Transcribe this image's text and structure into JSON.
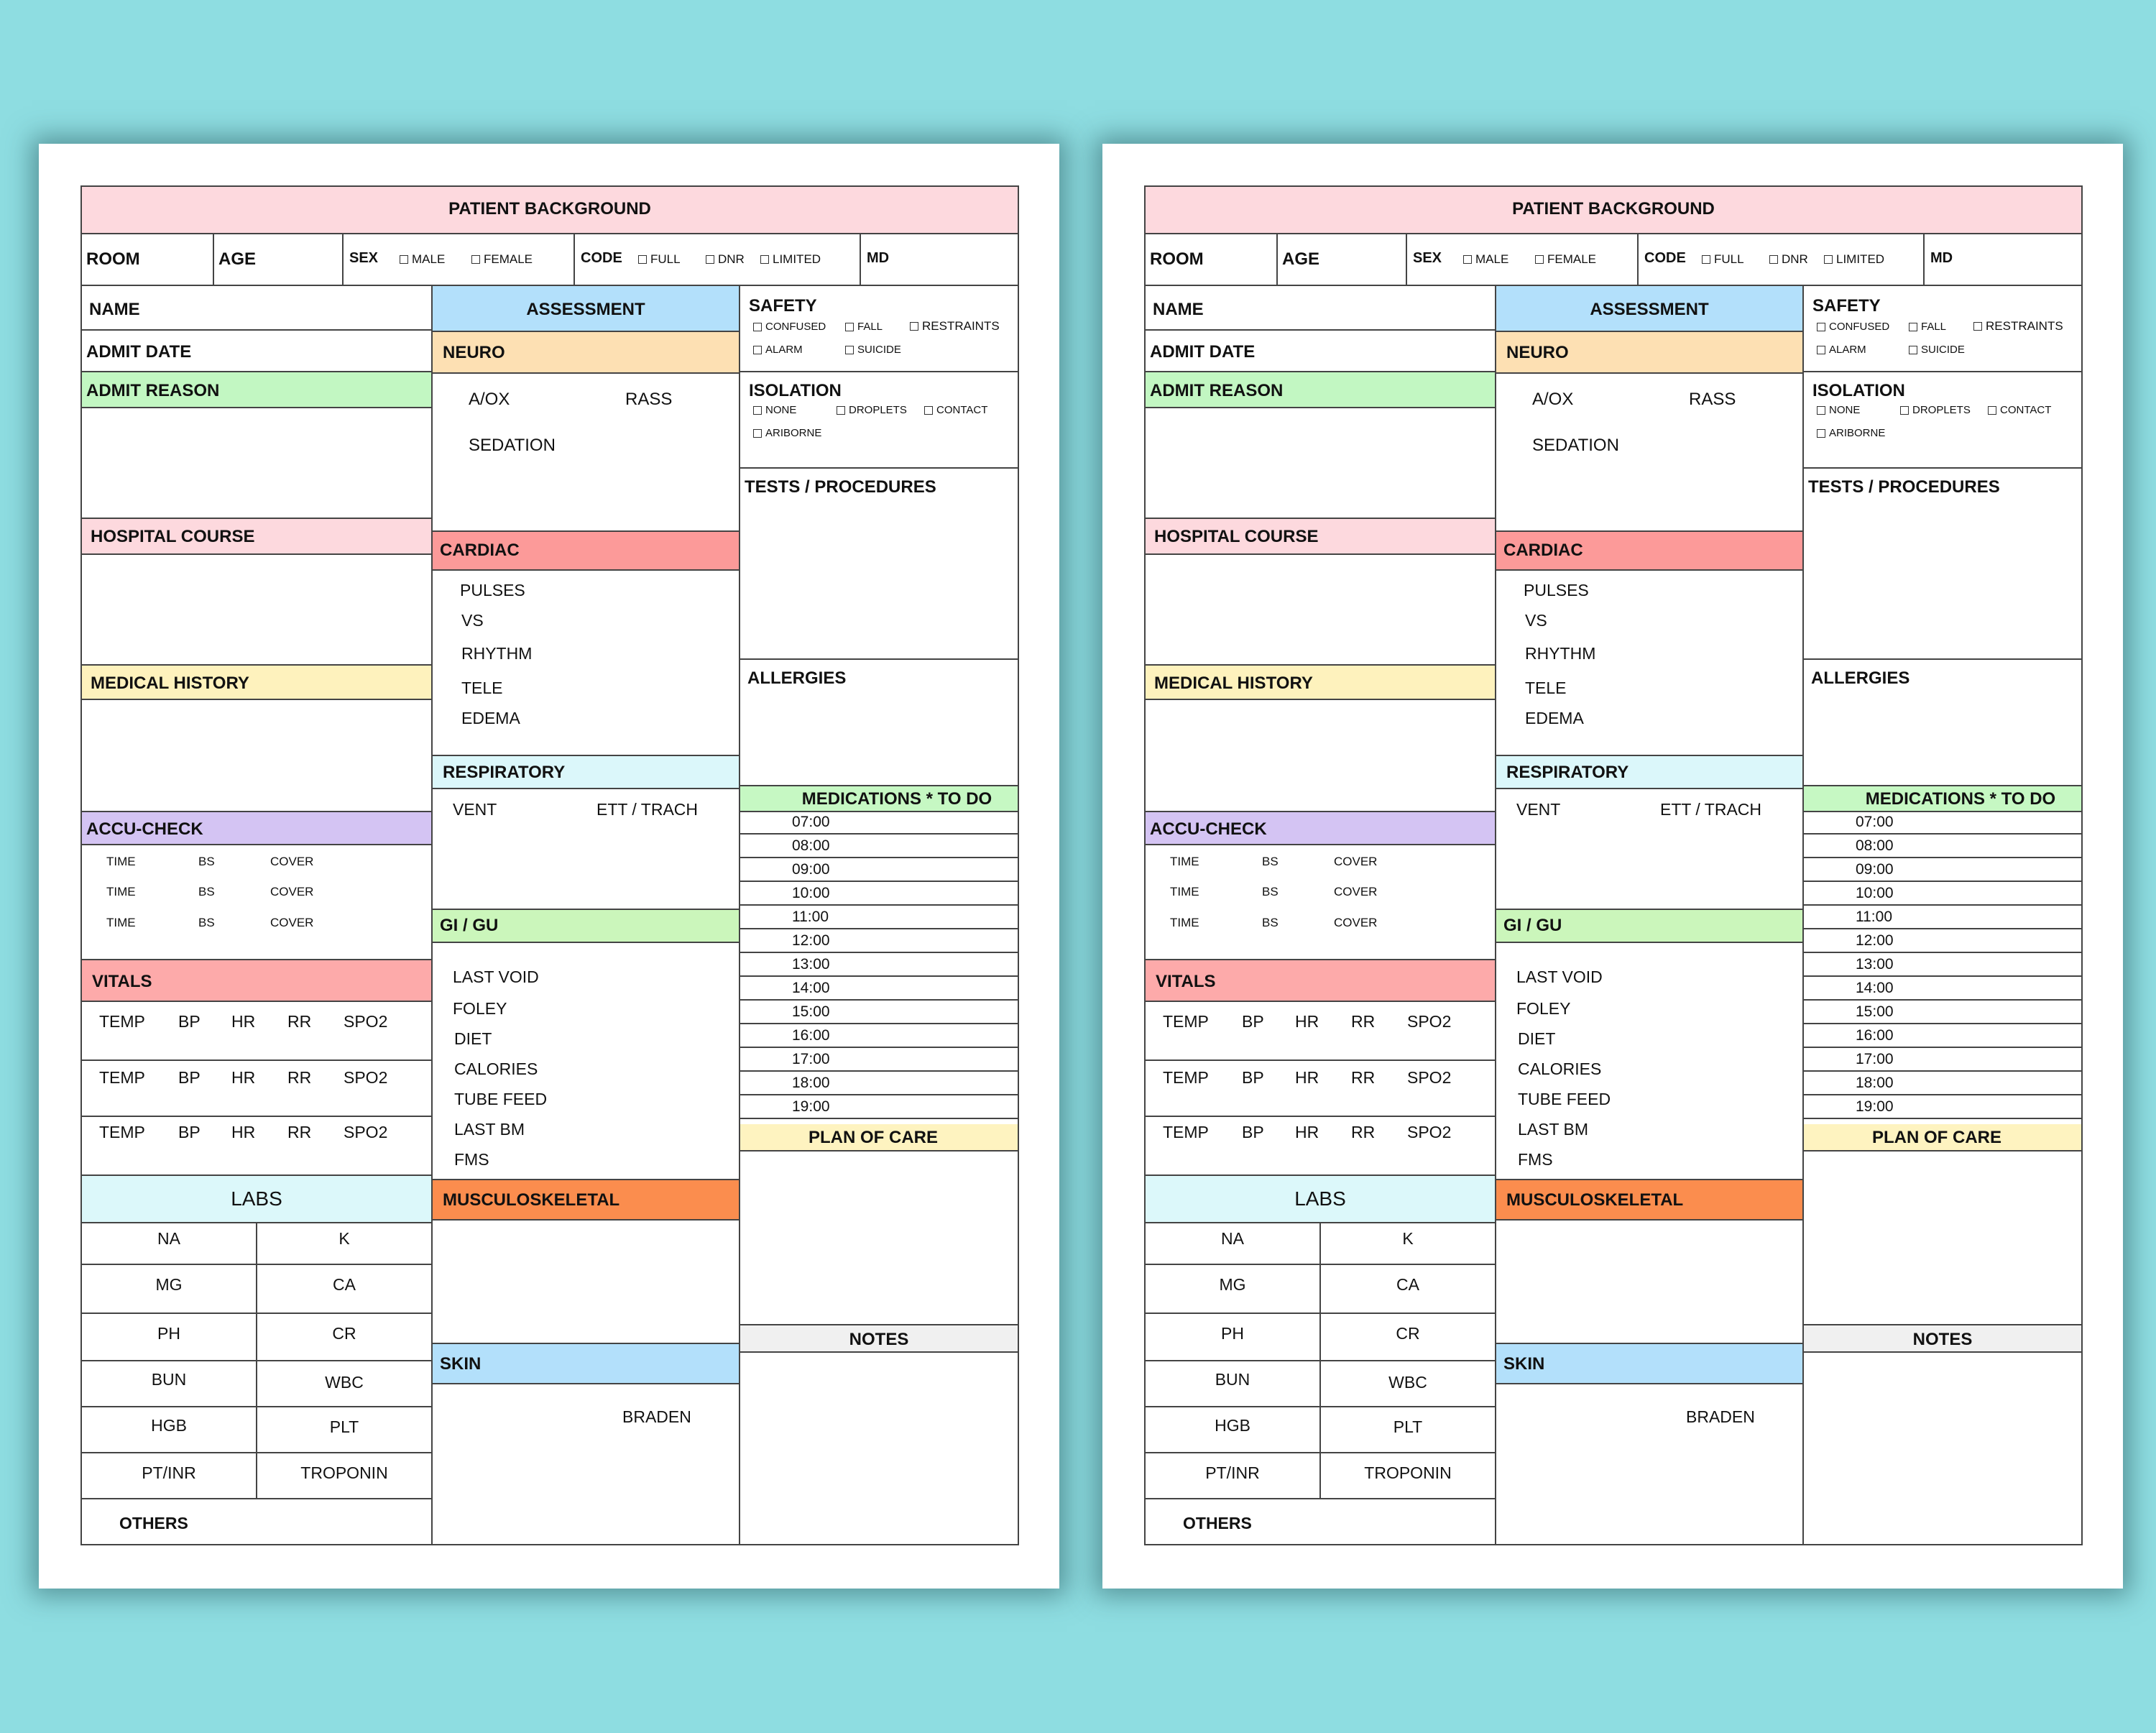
{
  "header": {
    "title": "PATIENT BACKGROUND",
    "room": "ROOM",
    "age": "AGE",
    "sex": "SEX",
    "sex_options": [
      "MALE",
      "FEMALE"
    ],
    "code": "CODE",
    "code_options": [
      "FULL",
      "DNR",
      "LIMITED"
    ],
    "md": "MD"
  },
  "left": {
    "name": "NAME",
    "admit_date": "ADMIT DATE",
    "admit_reason": "ADMIT REASON",
    "hospital_course": "HOSPITAL COURSE",
    "medical_history": "MEDICAL HISTORY",
    "accu_check": {
      "title": "ACCU-CHECK",
      "rows": [
        [
          "TIME",
          "BS",
          "COVER"
        ],
        [
          "TIME",
          "BS",
          "COVER"
        ],
        [
          "TIME",
          "BS",
          "COVER"
        ]
      ]
    },
    "vitals": {
      "title": "VITALS",
      "rows": [
        [
          "TEMP",
          "BP",
          "HR",
          "RR",
          "SPO2"
        ],
        [
          "TEMP",
          "BP",
          "HR",
          "RR",
          "SPO2"
        ],
        [
          "TEMP",
          "BP",
          "HR",
          "RR",
          "SPO2"
        ]
      ]
    },
    "labs": {
      "title": "LABS",
      "rows": [
        [
          "NA",
          "K"
        ],
        [
          "MG",
          "CA"
        ],
        [
          "PH",
          "CR"
        ],
        [
          "BUN",
          "WBC"
        ],
        [
          "HGB",
          "PLT"
        ],
        [
          "PT/INR",
          "TROPONIN"
        ]
      ],
      "others": "OTHERS"
    }
  },
  "middle": {
    "assessment": "ASSESSMENT",
    "neuro": {
      "title": "NEURO",
      "aox": "A/OX",
      "rass": "RASS",
      "sedation": "SEDATION"
    },
    "cardiac": {
      "title": "CARDIAC",
      "items": [
        "PULSES",
        "VS",
        "RHYTHM",
        "TELE",
        "EDEMA"
      ]
    },
    "respiratory": {
      "title": "RESPIRATORY",
      "vent": "VENT",
      "ett": "ETT / TRACH"
    },
    "gigu": {
      "title": "GI / GU",
      "items": [
        "LAST VOID",
        "FOLEY",
        "DIET",
        "CALORIES",
        "TUBE FEED",
        "LAST BM",
        "FMS"
      ]
    },
    "musculoskeletal": "MUSCULOSKELETAL",
    "skin": {
      "title": "SKIN",
      "braden": "BRADEN"
    }
  },
  "right": {
    "safety": {
      "title": "SAFETY",
      "options": [
        "CONFUSED",
        "FALL",
        "RESTRAINTS",
        "ALARM",
        "SUICIDE"
      ]
    },
    "isolation": {
      "title": "ISOLATION",
      "options": [
        "NONE",
        "DROPLETS",
        "CONTACT",
        "ARIBORNE"
      ]
    },
    "tests": "TESTS / PROCEDURES",
    "allergies": "ALLERGIES",
    "medications": {
      "title": "MEDICATIONS * TO DO",
      "times": [
        "07:00",
        "08:00",
        "09:00",
        "10:00",
        "11:00",
        "12:00",
        "13:00",
        "14:00",
        "15:00",
        "16:00",
        "17:00",
        "18:00",
        "19:00"
      ]
    },
    "plan_of_care": "PLAN OF CARE",
    "notes": "NOTES"
  },
  "colors": {
    "background": "#8edde1",
    "patient_background": "#fdd9de",
    "assessment": "#b3e0fb",
    "neuro": "#fde0b3",
    "admit_reason": "#c2f7c2",
    "hospital_course": "#fdd9de",
    "cardiac": "#fc9a99",
    "medical_history": "#fef2bd",
    "respiratory": "#dbf7fa",
    "accu_check": "#d4c4f3",
    "medications": "#c6f8c3",
    "gigu": "#cbf6bb",
    "vitals": "#fdaaaa",
    "plan_of_care": "#fef3c0",
    "labs": "#dcf8fa",
    "musculoskeletal": "#fb8d4e",
    "notes": "#f0f0f0",
    "skin": "#b3e0fb"
  }
}
